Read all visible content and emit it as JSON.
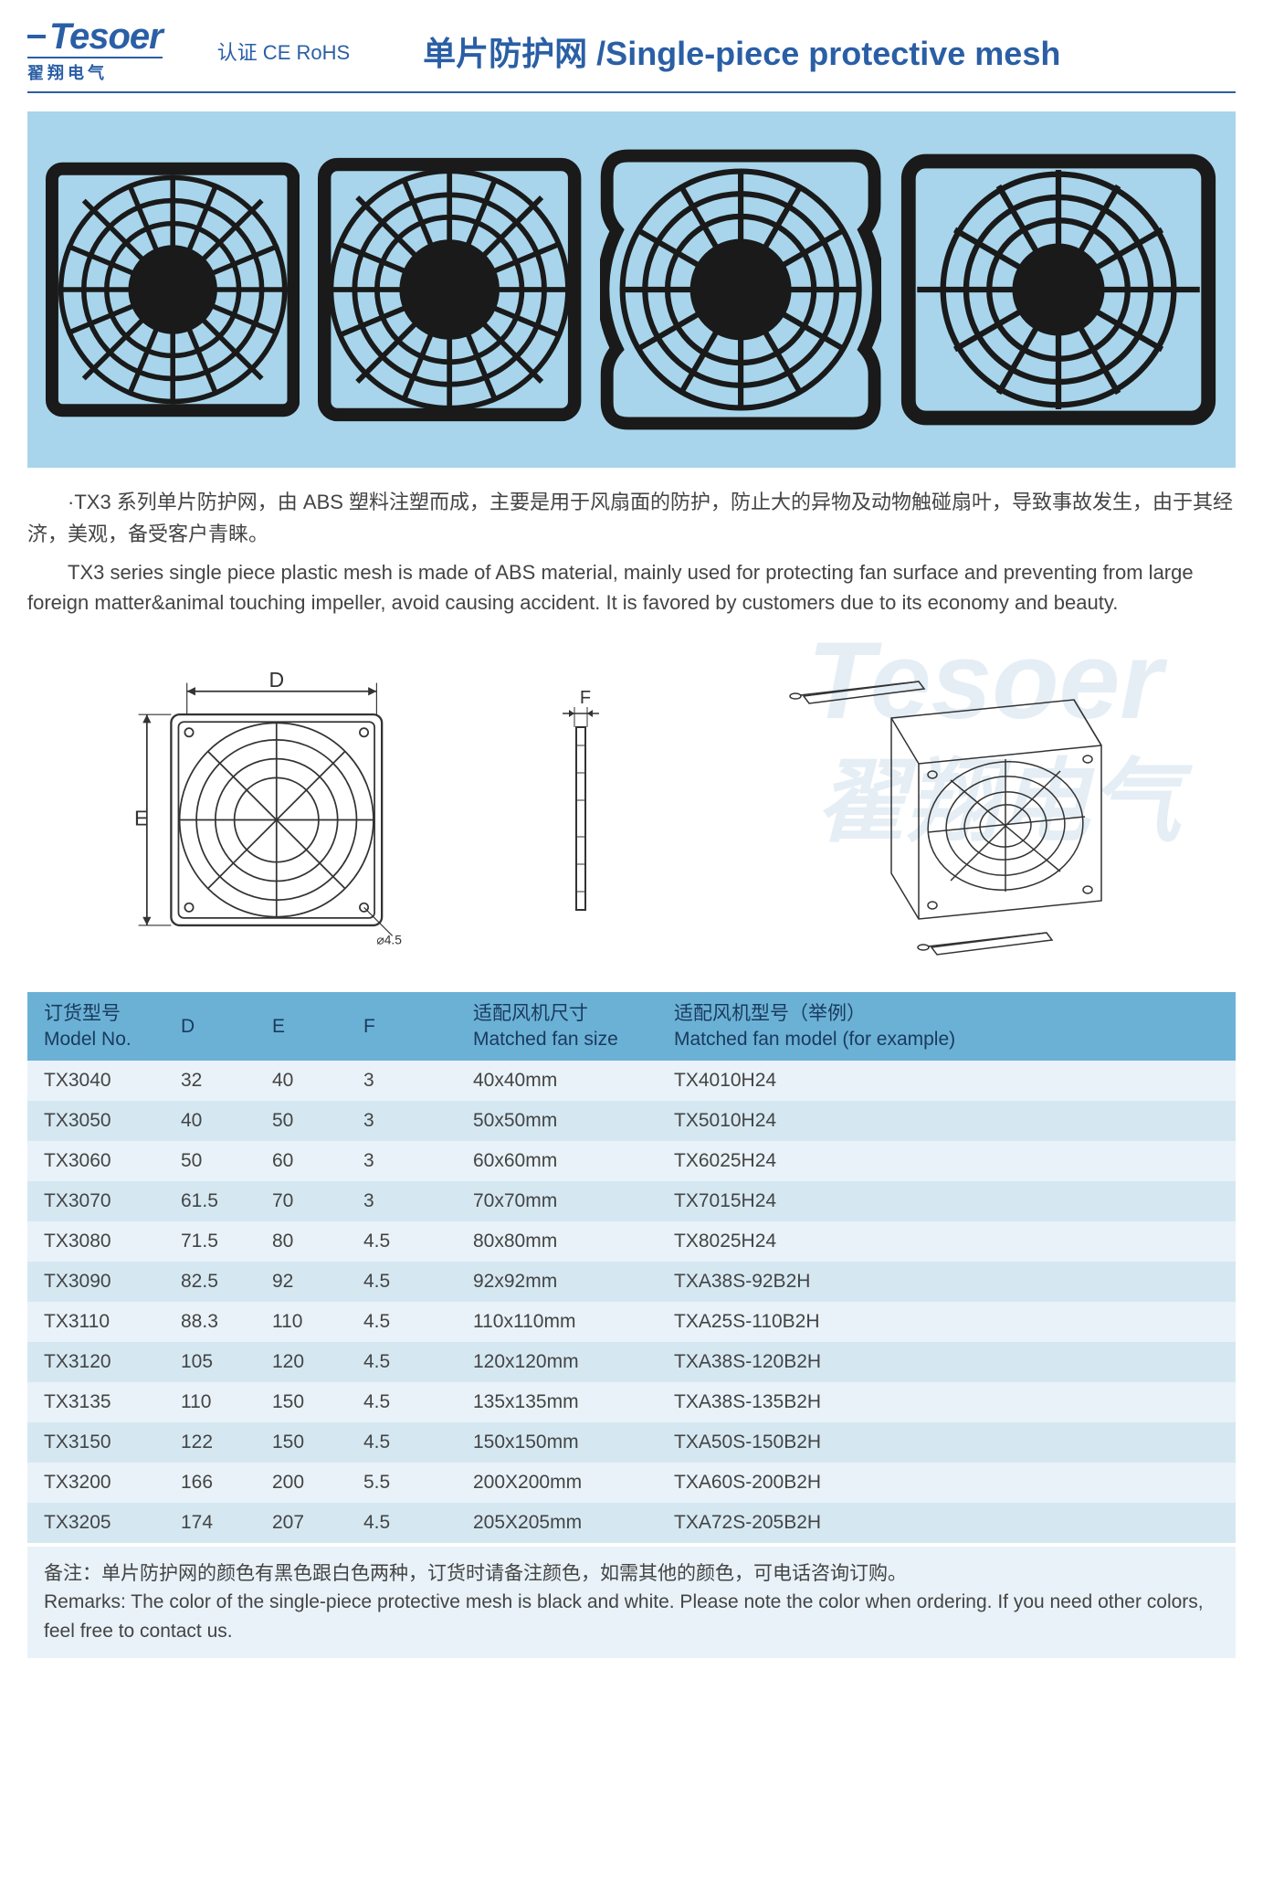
{
  "header": {
    "logo_main": "Tesoer",
    "logo_sub": "翟翔电气",
    "cert": "认证 CE RoHS",
    "title": "单片防护网 /Single-piece protective mesh"
  },
  "description": {
    "cn": "·TX3 系列单片防护网，由 ABS 塑料注塑而成，主要是用于风扇面的防护，防止大的异物及动物触碰扇叶，导致事故发生，由于其经济，美观，备受客户青睐。",
    "en": "TX3 series single piece plastic mesh is made of ABS material, mainly used for protecting fan surface and  preventing from large foreign matter&animal touching impeller, avoid causing accident. It is favored by customers due to its economy and beauty."
  },
  "diagram_labels": {
    "D": "D",
    "E": "E",
    "F": "F"
  },
  "watermark": {
    "top": "Tesoer",
    "cn": "翟翔电气"
  },
  "table": {
    "columns": [
      {
        "cn": "订货型号",
        "en": "Model No."
      },
      {
        "cn": "",
        "en": "D"
      },
      {
        "cn": "",
        "en": "E"
      },
      {
        "cn": "",
        "en": "F"
      },
      {
        "cn": "适配风机尺寸",
        "en": "Matched fan size"
      },
      {
        "cn": "适配风机型号（举例）",
        "en": "Matched fan model (for example)"
      }
    ],
    "rows": [
      [
        "TX3040",
        "32",
        "40",
        "3",
        "40x40mm",
        "TX4010H24"
      ],
      [
        "TX3050",
        "40",
        "50",
        "3",
        "50x50mm",
        "TX5010H24"
      ],
      [
        "TX3060",
        "50",
        "60",
        "3",
        "60x60mm",
        "TX6025H24"
      ],
      [
        "TX3070",
        "61.5",
        "70",
        "3",
        "70x70mm",
        "TX7015H24"
      ],
      [
        "TX3080",
        "71.5",
        "80",
        "4.5",
        "80x80mm",
        "TX8025H24"
      ],
      [
        "TX3090",
        "82.5",
        "92",
        "4.5",
        "92x92mm",
        "TXA38S-92B2H"
      ],
      [
        "TX3110",
        "88.3",
        "110",
        "4.5",
        "110x110mm",
        "TXA25S-110B2H"
      ],
      [
        "TX3120",
        "105",
        "120",
        "4.5",
        "120x120mm",
        "TXA38S-120B2H"
      ],
      [
        "TX3135",
        "110",
        "150",
        "4.5",
        "135x135mm",
        "TXA38S-135B2H"
      ],
      [
        "TX3150",
        "122",
        "150",
        "4.5",
        "150x150mm",
        "TXA50S-150B2H"
      ],
      [
        "TX3200",
        "166",
        "200",
        "5.5",
        "200X200mm",
        "TXA60S-200B2H"
      ],
      [
        "TX3205",
        "174",
        "207",
        "4.5",
        "205X205mm",
        "TXA72S-205B2H"
      ]
    ],
    "header_bg": "#6bb1d6",
    "row_bg_odd": "#e8f2f8",
    "row_bg_even": "#d5e8f2"
  },
  "remarks": {
    "cn": "备注：单片防护网的颜色有黑色跟白色两种，订货时请备注颜色，如需其他的颜色，可电话咨询订购。",
    "en": "Remarks: The color of the single-piece protective mesh is black and white. Please note the color when ordering. If you need other colors, feel free to contact us."
  },
  "colors": {
    "brand": "#2a5fa5",
    "hero_bg": "#a8d5eb",
    "guard_black": "#1a1a1a"
  }
}
